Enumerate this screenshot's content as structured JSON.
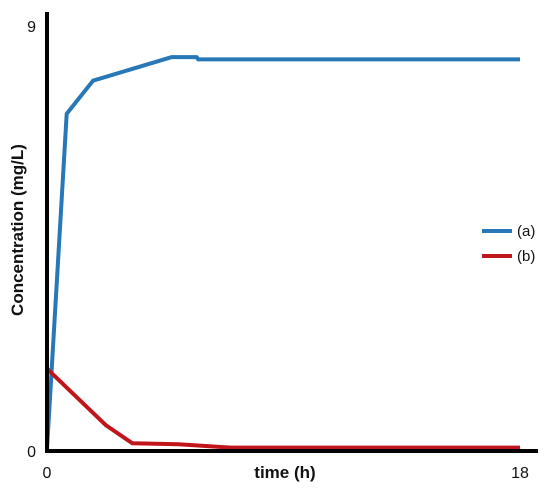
{
  "chart_data": {
    "type": "line",
    "xlabel": "time (h)",
    "ylabel": "Concentration (mg/L)",
    "xlim": [
      0,
      18
    ],
    "ylim": [
      0,
      9
    ],
    "x_ticks": [
      "0",
      "18"
    ],
    "y_ticks": [
      "0",
      "9"
    ],
    "grid": false,
    "legend_position": "right",
    "series": [
      {
        "name": "(a)",
        "color": "#2878b8",
        "points": [
          [
            0,
            0
          ],
          [
            0.75,
            7.1
          ],
          [
            1.75,
            7.8
          ],
          [
            4.75,
            8.3
          ],
          [
            5.7,
            8.3
          ],
          [
            5.75,
            8.25
          ],
          [
            18,
            8.25
          ]
        ]
      },
      {
        "name": "(b)",
        "color": "#c0151b",
        "points": [
          [
            0,
            1.7
          ],
          [
            2.25,
            0.5
          ],
          [
            3.25,
            0.12
          ],
          [
            5,
            0.1
          ],
          [
            7,
            0.03
          ],
          [
            18,
            0.03
          ]
        ]
      }
    ]
  }
}
